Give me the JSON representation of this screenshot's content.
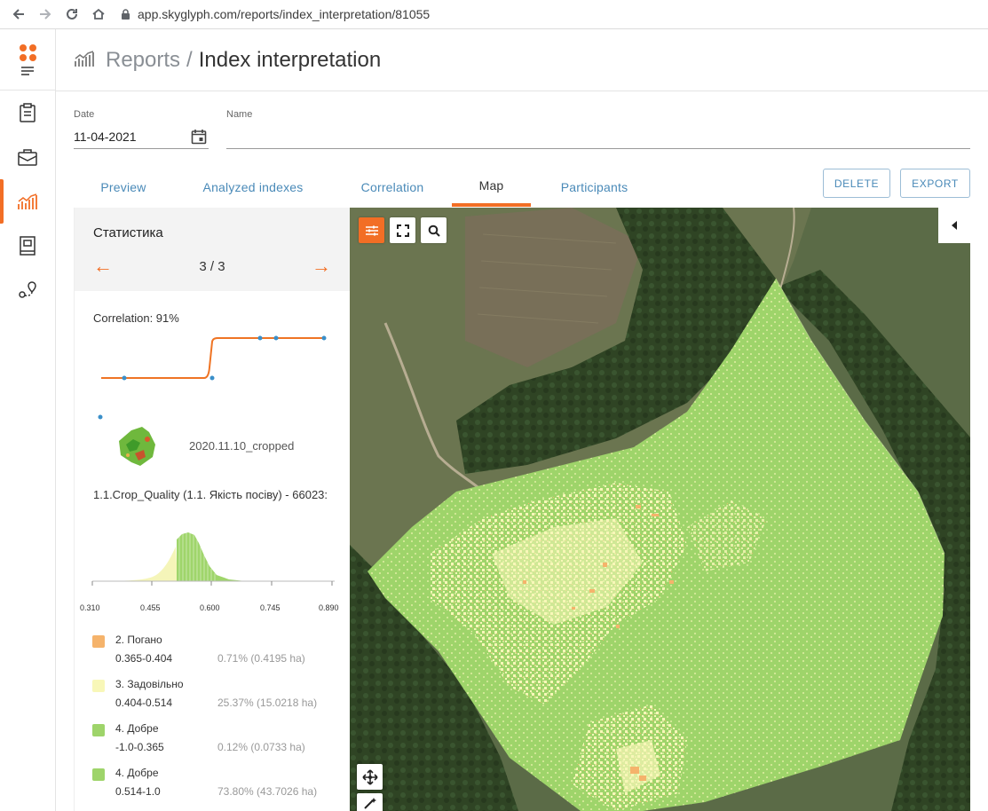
{
  "browser": {
    "url": "app.skyglyph.com/reports/index_interpretation/81055"
  },
  "header": {
    "root": "Reports",
    "separator": "/",
    "current": "Index interpretation"
  },
  "form": {
    "date_label": "Date",
    "date_value": "11-04-2021",
    "name_label": "Name",
    "name_value": ""
  },
  "tabs": [
    {
      "label": "Preview",
      "active": false
    },
    {
      "label": "Analyzed indexes",
      "active": false
    },
    {
      "label": "Correlation",
      "active": false
    },
    {
      "label": "Map",
      "active": true
    },
    {
      "label": "Participants",
      "active": false
    }
  ],
  "actions": {
    "delete": "DELETE",
    "export": "EXPORT"
  },
  "stats": {
    "title": "Статистика",
    "prev_arrow": "←",
    "next_arrow": "→",
    "page": "3 / 3",
    "correlation": "Correlation: 91%",
    "image_name": "2020.11.10_cropped",
    "index_title": "1.1.Crop_Quality (1.1. Якість посіву) - 66023:",
    "hist_ticks": [
      "0.310",
      "0.455",
      "0.600",
      "0.745",
      "0.890"
    ]
  },
  "legend": [
    {
      "name": "2. Погано",
      "range": "0.365-0.404",
      "pct": "0.71% (0.4195 ha)",
      "color": "#f5b36b"
    },
    {
      "name": "3. Задовільно",
      "range": "0.404-0.514",
      "pct": "25.37% (15.0218 ha)",
      "color": "#f8f7b8"
    },
    {
      "name": "4. Добре",
      "range": "-1.0-0.365",
      "pct": "0.12% (0.0733 ha)",
      "color": "#9ed46a"
    },
    {
      "name": "4. Добре",
      "range": "0.514-1.0",
      "pct": "73.80% (43.7026 ha)",
      "color": "#9ed46a"
    }
  ],
  "colors": {
    "accent": "#f26e25",
    "link": "#4a8ab8",
    "field_green": "#9ed46a",
    "field_yellow": "#f8f7b8",
    "field_orange": "#f5b36b"
  }
}
